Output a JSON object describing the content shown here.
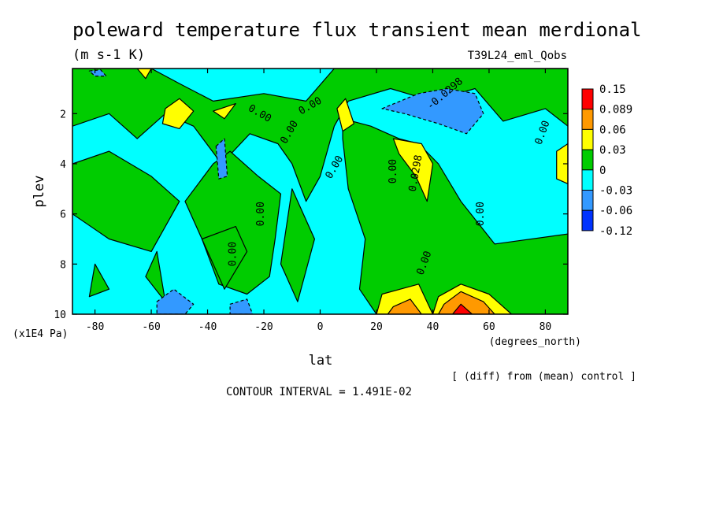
{
  "chart_data": {
    "type": "heatmap",
    "title": "poleward temperature flux transient mean merdional",
    "units": "(m s-1 K)",
    "run_label": "T39L24_eml_Qobs",
    "xlabel": "lat",
    "x_units": "(degrees_north)",
    "ylabel": "plev",
    "y_units": "(x1E4 Pa)",
    "xlim": [
      -88,
      88
    ],
    "ylim": [
      10,
      0.2
    ],
    "x_ticks": [
      -80,
      -60,
      -40,
      -20,
      0,
      20,
      40,
      60,
      80
    ],
    "x_tick_labels": [
      "-80",
      "-60",
      "-40",
      "-20",
      "0",
      "20",
      "40",
      "60",
      "80"
    ],
    "y_ticks": [
      2,
      4,
      6,
      8,
      10
    ],
    "y_tick_labels": [
      "2",
      "4",
      "6",
      "8",
      "10"
    ],
    "footer_note": "[ (diff) from (mean) control ]",
    "contour_interval": "CONTOUR INTERVAL = 1.491E-02",
    "contour_labels": [
      "0.00",
      "-0.0298",
      "0.0298"
    ],
    "colorbar": {
      "labels": [
        "0.15",
        "0.089",
        "0.06",
        "0.03",
        "0",
        "-0.03",
        "-0.06",
        "-0.12"
      ],
      "colors": [
        "#ff0000",
        "#ff9900",
        "#ffff00",
        "#00cc00",
        "#00ffff",
        "#3399ff",
        "#0033ff"
      ]
    },
    "regions": [
      {
        "level": "pos1",
        "color": "#00cc00",
        "points": [
          [
            -88,
            0.2
          ],
          [
            -60,
            0.2
          ],
          [
            -50,
            0.8
          ],
          [
            -38,
            1.5
          ],
          [
            -20,
            1.2
          ],
          [
            -5,
            1.5
          ],
          [
            5,
            0.2
          ],
          [
            88,
            0.2
          ],
          [
            88,
            2.5
          ],
          [
            80,
            1.8
          ],
          [
            65,
            2.3
          ],
          [
            55,
            1.0
          ],
          [
            40,
            1.5
          ],
          [
            25,
            1.0
          ],
          [
            10,
            1.5
          ],
          [
            5,
            2.5
          ],
          [
            0,
            4.5
          ],
          [
            -5,
            5.5
          ],
          [
            -10,
            4
          ],
          [
            -15,
            3.2
          ],
          [
            -25,
            2.8
          ],
          [
            -35,
            4.0
          ],
          [
            -45,
            2.5
          ],
          [
            -55,
            2
          ],
          [
            -65,
            3
          ],
          [
            -75,
            2
          ],
          [
            -88,
            2.5
          ]
        ]
      },
      {
        "level": "pos1",
        "color": "#00cc00",
        "points": [
          [
            -88,
            4
          ],
          [
            -75,
            3.5
          ],
          [
            -60,
            4.5
          ],
          [
            -50,
            5.5
          ],
          [
            -60,
            7.5
          ],
          [
            -75,
            7
          ],
          [
            -88,
            6
          ]
        ]
      },
      {
        "level": "pos1",
        "color": "#00cc00",
        "points": [
          [
            -48,
            5.5
          ],
          [
            -38,
            4.0
          ],
          [
            -32,
            3.5
          ],
          [
            -22,
            4.5
          ],
          [
            -14,
            5.2
          ],
          [
            -16,
            7
          ],
          [
            -18,
            8.5
          ],
          [
            -26,
            9.2
          ],
          [
            -36,
            8.8
          ],
          [
            -42,
            7
          ]
        ]
      },
      {
        "level": "pos1",
        "color": "#00cc00",
        "points": [
          [
            8,
            2.2
          ],
          [
            18,
            2.5
          ],
          [
            28,
            3.0
          ],
          [
            35,
            3.2
          ],
          [
            42,
            4.0
          ],
          [
            50,
            5.5
          ],
          [
            62,
            7.2
          ],
          [
            88,
            6.8
          ],
          [
            88,
            10
          ],
          [
            20,
            10
          ],
          [
            14,
            9
          ],
          [
            16,
            7
          ],
          [
            10,
            5
          ],
          [
            8,
            3
          ]
        ]
      },
      {
        "level": "pos1",
        "color": "#00cc00",
        "points": [
          [
            -80,
            8.0
          ],
          [
            -75,
            9.0
          ],
          [
            -82,
            9.3
          ]
        ]
      },
      {
        "level": "pos1",
        "color": "#00cc00",
        "points": [
          [
            -62,
            8.5
          ],
          [
            -58,
            7.5
          ],
          [
            -55,
            9.5
          ]
        ]
      },
      {
        "level": "pos1",
        "color": "#00cc00",
        "points": [
          [
            -42,
            7.0
          ],
          [
            -30,
            6.5
          ],
          [
            -26,
            7.5
          ],
          [
            -34,
            9.0
          ]
        ]
      },
      {
        "level": "pos1",
        "color": "#00cc00",
        "points": [
          [
            -10,
            5
          ],
          [
            -2,
            7
          ],
          [
            -8,
            9.5
          ],
          [
            -14,
            8
          ]
        ]
      },
      {
        "level": "pos2",
        "color": "#ffff00",
        "points": [
          [
            -55,
            1.8
          ],
          [
            -50,
            1.4
          ],
          [
            -45,
            1.9
          ],
          [
            -50,
            2.6
          ],
          [
            -56,
            2.4
          ]
        ]
      },
      {
        "level": "pos2",
        "color": "#ffff00",
        "points": [
          [
            26,
            3.0
          ],
          [
            36,
            3.2
          ],
          [
            40,
            4.0
          ],
          [
            38,
            5.5
          ],
          [
            34,
            4.5
          ],
          [
            28,
            3.6
          ]
        ]
      },
      {
        "level": "pos2",
        "color": "#ffff00",
        "points": [
          [
            6,
            1.8
          ],
          [
            9,
            1.4
          ],
          [
            12,
            2.4
          ],
          [
            8,
            2.7
          ]
        ]
      },
      {
        "level": "pos2",
        "color": "#ffff00",
        "points": [
          [
            -38,
            1.9
          ],
          [
            -30,
            1.6
          ],
          [
            -34,
            2.2
          ]
        ]
      },
      {
        "level": "pos2",
        "color": "#ffff00",
        "points": [
          [
            84,
            3.5
          ],
          [
            88,
            3.2
          ],
          [
            88,
            4.8
          ],
          [
            84,
            4.6
          ]
        ]
      },
      {
        "level": "pos2",
        "color": "#ffff00",
        "points": [
          [
            -65,
            0.2
          ],
          [
            -60,
            0.2
          ],
          [
            -62,
            0.6
          ]
        ]
      },
      {
        "level": "pos2",
        "color": "#ffff00",
        "points": [
          [
            22,
            9.2
          ],
          [
            35,
            8.8
          ],
          [
            40,
            10
          ],
          [
            20,
            10
          ]
        ]
      },
      {
        "level": "pos2",
        "color": "#ffff00",
        "points": [
          [
            42,
            9.3
          ],
          [
            50,
            8.8
          ],
          [
            60,
            9.2
          ],
          [
            68,
            10
          ],
          [
            40,
            10
          ]
        ]
      },
      {
        "level": "pos3",
        "color": "#ff9900",
        "points": [
          [
            44,
            9.6
          ],
          [
            50,
            9.1
          ],
          [
            58,
            9.5
          ],
          [
            62,
            10
          ],
          [
            42,
            10
          ]
        ]
      },
      {
        "level": "pos3",
        "color": "#ff9900",
        "points": [
          [
            26,
            9.7
          ],
          [
            32,
            9.4
          ],
          [
            36,
            10
          ],
          [
            24,
            10
          ]
        ]
      },
      {
        "level": "pos4",
        "color": "#ff0000",
        "points": [
          [
            47,
            10
          ],
          [
            50,
            9.6
          ],
          [
            54,
            10
          ]
        ]
      },
      {
        "level": "neg2",
        "color": "#3399ff",
        "points": [
          [
            22,
            1.8
          ],
          [
            35,
            1.2
          ],
          [
            45,
            1.0
          ],
          [
            55,
            1.2
          ],
          [
            58,
            2.0
          ],
          [
            52,
            2.8
          ],
          [
            42,
            2.4
          ],
          [
            30,
            2.0
          ]
        ]
      },
      {
        "level": "neg2",
        "color": "#3399ff",
        "points": [
          [
            -37,
            3.3
          ],
          [
            -34,
            3.0
          ],
          [
            -33,
            4.5
          ],
          [
            -36,
            4.6
          ]
        ]
      },
      {
        "level": "neg2",
        "color": "#3399ff",
        "points": [
          [
            -58,
            9.5
          ],
          [
            -52,
            9.0
          ],
          [
            -45,
            9.6
          ],
          [
            -48,
            10
          ],
          [
            -58,
            10
          ]
        ]
      },
      {
        "level": "neg2",
        "color": "#3399ff",
        "points": [
          [
            -32,
            9.6
          ],
          [
            -26,
            9.4
          ],
          [
            -24,
            10
          ],
          [
            -32,
            10
          ]
        ]
      },
      {
        "level": "neg2",
        "color": "#3399ff",
        "points": [
          [
            -82,
            0.3
          ],
          [
            -78,
            0.25
          ],
          [
            -76,
            0.5
          ],
          [
            -80,
            0.5
          ]
        ]
      }
    ]
  }
}
